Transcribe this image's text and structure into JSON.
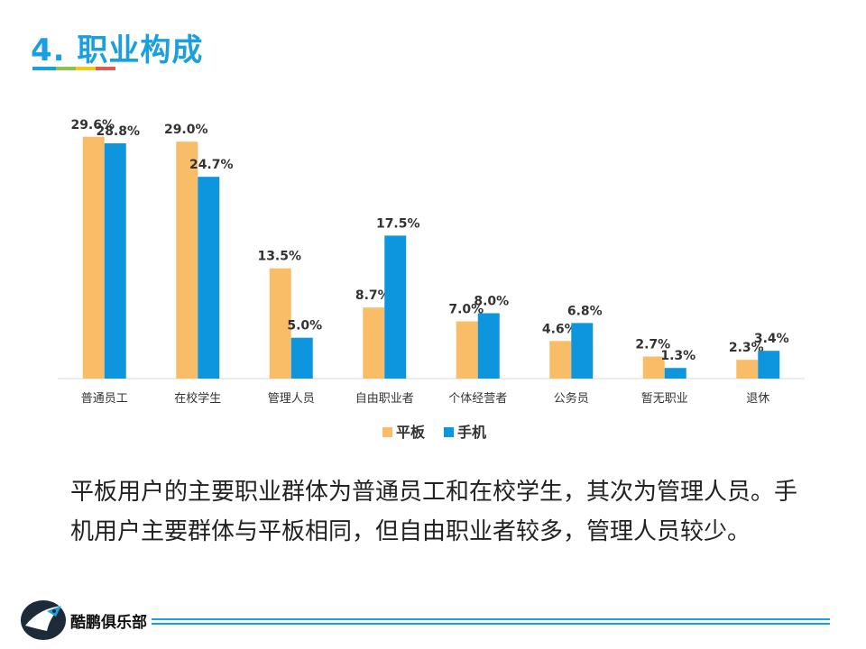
{
  "slide": {
    "title": "4. 职业构成",
    "title_bar_colors": [
      "#1a9fe0",
      "#8bc34a",
      "#f5c518",
      "#e05a4f"
    ],
    "description": "平板用户的主要职业群体为普通员工和在校学生，其次为管理人员。手机用户主要群体与平板相同，但自由职业者较多，管理人员较少。",
    "footer_brand": "酷鹏俱乐部",
    "footer_line_color": "#1a9fe0"
  },
  "chart_data": {
    "type": "bar",
    "title": "",
    "xlabel": "",
    "ylabel": "",
    "ylim": [
      0,
      32
    ],
    "grid": false,
    "legend_position": "bottom",
    "categories": [
      "普通员工",
      "在校学生",
      "管理人员",
      "自由职业者",
      "个体经营者",
      "公务员",
      "暂无职业",
      "退休"
    ],
    "series": [
      {
        "name": "平板",
        "color": "#f9bd68",
        "values": [
          29.6,
          29.0,
          13.5,
          8.7,
          7.0,
          4.6,
          2.7,
          2.3
        ],
        "labels": [
          "29.6%",
          "29.0%",
          "13.5%",
          "8.7%",
          "7.0%",
          "4.6%",
          "2.7%",
          "2.3%"
        ]
      },
      {
        "name": "手机",
        "color": "#0d95de",
        "values": [
          28.8,
          24.7,
          5.0,
          17.5,
          8.0,
          6.8,
          1.3,
          3.4
        ],
        "labels": [
          "28.8%",
          "24.7%",
          "5.0%",
          "17.5%",
          "8.0%",
          "6.8%",
          "1.3%",
          "3.4%"
        ]
      }
    ]
  }
}
